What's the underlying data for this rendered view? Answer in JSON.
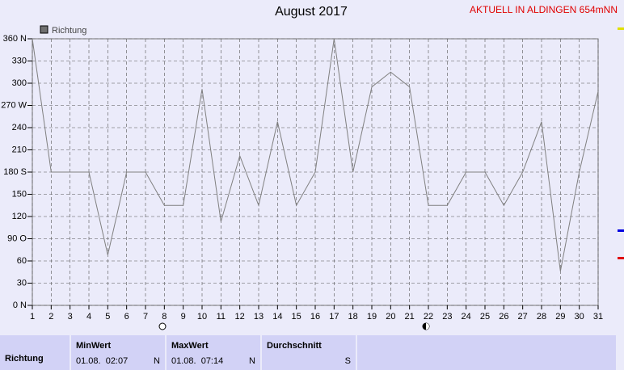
{
  "chart_data": {
    "type": "line",
    "title": "August 2017",
    "subtitle": "AKTUELL IN ALDINGEN 654mNN",
    "x": [
      1,
      2,
      3,
      4,
      5,
      6,
      7,
      8,
      9,
      10,
      11,
      12,
      13,
      14,
      15,
      16,
      17,
      18,
      19,
      20,
      21,
      22,
      23,
      24,
      25,
      26,
      27,
      28,
      29,
      30,
      31
    ],
    "xlim": [
      1,
      31
    ],
    "xticks": [
      1,
      2,
      3,
      4,
      5,
      6,
      7,
      8,
      9,
      10,
      11,
      12,
      13,
      14,
      15,
      16,
      17,
      18,
      19,
      20,
      21,
      22,
      23,
      24,
      25,
      26,
      27,
      28,
      29,
      30,
      31
    ],
    "series": [
      {
        "name": "Richtung",
        "color": "#808080",
        "values": [
          360,
          180,
          180,
          180,
          68,
          180,
          180,
          135,
          135,
          292,
          113,
          202,
          135,
          248,
          135,
          180,
          360,
          180,
          295,
          315,
          295,
          135,
          135,
          180,
          180,
          135,
          180,
          248,
          46,
          180,
          289
        ]
      }
    ],
    "ylim": [
      0,
      360
    ],
    "yticks": [
      {
        "value": 0,
        "label": "0 N"
      },
      30,
      60,
      {
        "value": 90,
        "label": "90 O"
      },
      120,
      150,
      {
        "value": 180,
        "label": "180 S"
      },
      210,
      240,
      {
        "value": 270,
        "label": "270 W"
      },
      300,
      330,
      {
        "value": 360,
        "label": "360 N"
      }
    ],
    "grid": true
  },
  "stats_table": {
    "row_label": "Richtung",
    "columns": [
      {
        "header": "MinWert",
        "date": "01.08.  02:07",
        "dir": "N"
      },
      {
        "header": "MaxWert",
        "date": "01.08.  07:14",
        "dir": "N"
      },
      {
        "header": "Durchschnitt",
        "dir": "S"
      }
    ]
  }
}
